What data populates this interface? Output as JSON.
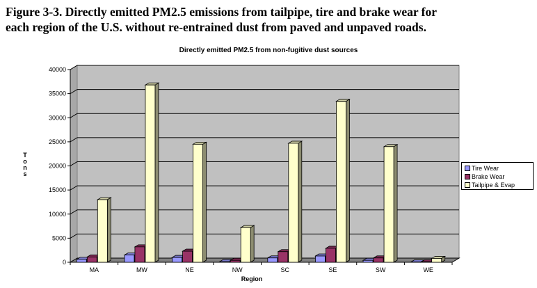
{
  "caption": {
    "line1": "Figure 3-3.  Directly emitted PM2.5 emissions from tailpipe, tire and brake wear for",
    "line2": "each region of the U.S. without re-entrained dust from paved and unpaved roads."
  },
  "chart_data": {
    "type": "bar",
    "title": "Directly emitted PM2.5 from non-fugitive dust sources",
    "xlabel": "Region",
    "ylabel": "Tons",
    "ylim": [
      0,
      40000
    ],
    "yticks": [
      0,
      5000,
      10000,
      15000,
      20000,
      25000,
      30000,
      35000,
      40000
    ],
    "grid": true,
    "legend_position": "right",
    "categories": [
      "MA",
      "MW",
      "NE",
      "NW",
      "SC",
      "SE",
      "SW",
      "WE"
    ],
    "series": [
      {
        "name": "Tire Wear",
        "color": "#9999ff",
        "values": [
          600,
          1500,
          1000,
          150,
          900,
          1300,
          400,
          50
        ]
      },
      {
        "name": "Brake Wear",
        "color": "#993366",
        "values": [
          1100,
          3200,
          2300,
          400,
          2200,
          2900,
          900,
          100
        ]
      },
      {
        "name": "Tailpipe & Evap",
        "color": "#ffffcc",
        "values": [
          13000,
          36800,
          24500,
          7200,
          24700,
          33400,
          24000,
          800
        ]
      }
    ]
  }
}
